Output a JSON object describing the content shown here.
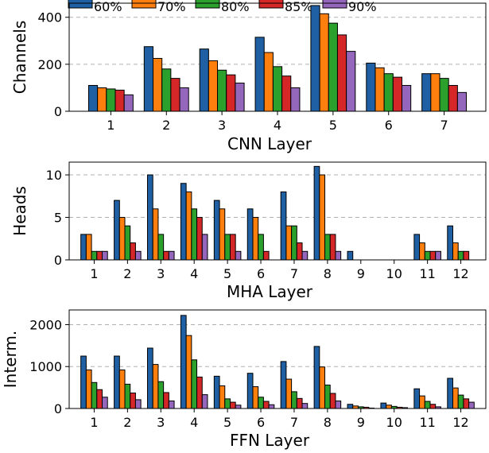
{
  "legend": [
    "60%",
    "70%",
    "80%",
    "85%",
    "90%"
  ],
  "colors": [
    "#1f5fa3",
    "#ff7f0e",
    "#2ca02c",
    "#d62728",
    "#9467bd"
  ],
  "chart_data": [
    {
      "type": "bar",
      "xlabel": "CNN Layer",
      "ylabel": "Channels",
      "categories": [
        "1",
        "2",
        "3",
        "4",
        "5",
        "6",
        "7"
      ],
      "ylim": [
        0,
        460
      ],
      "yticks": [
        0,
        200,
        400
      ],
      "series": [
        {
          "name": "60%",
          "values": [
            110,
            275,
            265,
            315,
            450,
            205,
            160
          ]
        },
        {
          "name": "70%",
          "values": [
            100,
            225,
            215,
            250,
            415,
            185,
            160
          ]
        },
        {
          "name": "80%",
          "values": [
            95,
            180,
            175,
            190,
            375,
            160,
            140
          ]
        },
        {
          "name": "85%",
          "values": [
            90,
            140,
            155,
            150,
            325,
            145,
            110
          ]
        },
        {
          "name": "90%",
          "values": [
            70,
            100,
            120,
            100,
            255,
            110,
            80
          ]
        }
      ]
    },
    {
      "type": "bar",
      "xlabel": "MHA Layer",
      "ylabel": "Heads",
      "categories": [
        "1",
        "2",
        "3",
        "4",
        "5",
        "6",
        "7",
        "8",
        "9",
        "10",
        "11",
        "12"
      ],
      "ylim": [
        0,
        11.5
      ],
      "yticks": [
        0,
        5,
        10
      ],
      "series": [
        {
          "name": "60%",
          "values": [
            3,
            7,
            10,
            9,
            7,
            6,
            8,
            11,
            1,
            0,
            3,
            4
          ]
        },
        {
          "name": "70%",
          "values": [
            3,
            5,
            6,
            8,
            6,
            5,
            4,
            10,
            0,
            0,
            2,
            2
          ]
        },
        {
          "name": "80%",
          "values": [
            1,
            4,
            3,
            6,
            3,
            3,
            4,
            3,
            0,
            0,
            1,
            1
          ]
        },
        {
          "name": "85%",
          "values": [
            1,
            2,
            1,
            5,
            3,
            1,
            2,
            3,
            0,
            0,
            1,
            1
          ]
        },
        {
          "name": "90%",
          "values": [
            1,
            1,
            1,
            3,
            1,
            0,
            1,
            1,
            0,
            0,
            1,
            0
          ]
        }
      ]
    },
    {
      "type": "bar",
      "xlabel": "FFN Layer",
      "ylabel": "Interm.",
      "categories": [
        "1",
        "2",
        "3",
        "4",
        "5",
        "6",
        "7",
        "8",
        "9",
        "10",
        "11",
        "12"
      ],
      "ylim": [
        0,
        2350
      ],
      "yticks": [
        0,
        1000,
        2000
      ],
      "series": [
        {
          "name": "60%",
          "values": [
            1250,
            1250,
            1440,
            2220,
            770,
            840,
            1120,
            1480,
            100,
            130,
            470,
            720
          ]
        },
        {
          "name": "70%",
          "values": [
            920,
            920,
            1050,
            1740,
            540,
            520,
            700,
            990,
            60,
            80,
            300,
            490
          ]
        },
        {
          "name": "80%",
          "values": [
            620,
            580,
            640,
            1160,
            230,
            270,
            400,
            560,
            40,
            50,
            170,
            320
          ]
        },
        {
          "name": "85%",
          "values": [
            450,
            370,
            380,
            750,
            150,
            170,
            240,
            360,
            30,
            30,
            100,
            230
          ]
        },
        {
          "name": "90%",
          "values": [
            270,
            210,
            180,
            330,
            80,
            90,
            120,
            180,
            10,
            20,
            40,
            150
          ]
        }
      ]
    }
  ]
}
